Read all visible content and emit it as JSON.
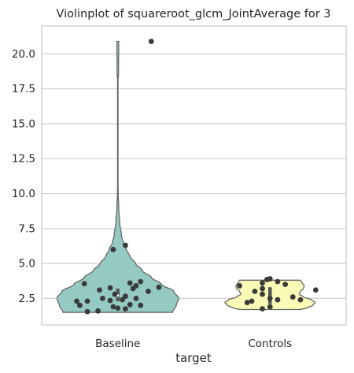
{
  "chart_data": {
    "type": "violin",
    "title": "Violinplot of squareroot_glcm_JointAverage for 3",
    "xlabel": "target",
    "ylabel": "",
    "ylim": [
      0.6,
      22.0
    ],
    "yticks": [
      2.5,
      5.0,
      7.5,
      10.0,
      12.5,
      15.0,
      17.5,
      20.0
    ],
    "ytick_labels": [
      "2.5",
      "5.0",
      "7.5",
      "10.0",
      "12.5",
      "15.0",
      "17.5",
      "20.0"
    ],
    "grid": true,
    "categories": [
      "Baseline",
      "Controls"
    ],
    "colors": {
      "Baseline": "#95cac2",
      "Controls": "#fafab7"
    },
    "violins": [
      {
        "category": "Baseline",
        "min": 1.5,
        "max": 20.9,
        "q1": 2.3,
        "median": 2.7,
        "q3": 3.2,
        "profile": [
          [
            1.5,
            0.9
          ],
          [
            2.0,
            0.96
          ],
          [
            2.5,
            1.0
          ],
          [
            3.0,
            0.92
          ],
          [
            3.5,
            0.72
          ],
          [
            4.0,
            0.55
          ],
          [
            4.5,
            0.4
          ],
          [
            5.0,
            0.29
          ],
          [
            5.5,
            0.2
          ],
          [
            6.0,
            0.14
          ],
          [
            6.5,
            0.09
          ],
          [
            7.0,
            0.06
          ],
          [
            8.0,
            0.03
          ],
          [
            9.0,
            0.015
          ],
          [
            10.0,
            0.006
          ],
          [
            11.0,
            0.002
          ],
          [
            14.0,
            0.0
          ],
          [
            18.0,
            0.0
          ],
          [
            18.6,
            0.012
          ],
          [
            19.3,
            0.012
          ],
          [
            20.2,
            0.015
          ],
          [
            20.9,
            0.015
          ]
        ],
        "points": [
          [
            1.55,
            -0.2
          ],
          [
            1.6,
            -0.13
          ],
          [
            1.75,
            0.05
          ],
          [
            1.8,
            0.0
          ],
          [
            1.9,
            -0.03
          ],
          [
            2.0,
            -0.25
          ],
          [
            2.05,
            0.08
          ],
          [
            2.0,
            0.15
          ],
          [
            2.3,
            -0.27
          ],
          [
            2.3,
            -0.2
          ],
          [
            2.35,
            -0.05
          ],
          [
            2.4,
            0.03
          ],
          [
            2.5,
            -0.1
          ],
          [
            2.5,
            0.12
          ],
          [
            2.65,
            0.05
          ],
          [
            2.8,
            -0.02
          ],
          [
            3.0,
            0.2
          ],
          [
            3.1,
            -0.12
          ],
          [
            3.2,
            0.1
          ],
          [
            3.25,
            -0.05
          ],
          [
            3.3,
            0.27
          ],
          [
            3.4,
            0.12
          ],
          [
            3.55,
            -0.22
          ],
          [
            3.6,
            0.08
          ],
          [
            3.7,
            0.15
          ],
          [
            6.0,
            -0.03
          ],
          [
            6.3,
            0.05
          ],
          [
            20.9,
            0.22
          ]
        ]
      },
      {
        "category": "Controls",
        "min": 1.7,
        "max": 3.8,
        "q1": 2.1,
        "median": 2.5,
        "q3": 3.3,
        "profile": [
          [
            1.7,
            0.5
          ],
          [
            1.8,
            0.6
          ],
          [
            2.0,
            0.7
          ],
          [
            2.2,
            0.74
          ],
          [
            2.4,
            0.68
          ],
          [
            2.6,
            0.55
          ],
          [
            2.8,
            0.48
          ],
          [
            3.0,
            0.5
          ],
          [
            3.2,
            0.55
          ],
          [
            3.4,
            0.56
          ],
          [
            3.6,
            0.53
          ],
          [
            3.8,
            0.5
          ]
        ],
        "points": [
          [
            1.75,
            -0.05
          ],
          [
            1.9,
            0.0
          ],
          [
            2.2,
            -0.15
          ],
          [
            2.3,
            -0.12
          ],
          [
            2.4,
            0.05
          ],
          [
            2.4,
            0.2
          ],
          [
            2.5,
            0.0
          ],
          [
            2.6,
            0.15
          ],
          [
            2.8,
            -0.05
          ],
          [
            3.0,
            -0.1
          ],
          [
            3.1,
            0.3
          ],
          [
            3.2,
            -0.05
          ],
          [
            3.4,
            -0.2
          ],
          [
            3.5,
            0.1
          ],
          [
            3.6,
            -0.05
          ],
          [
            3.7,
            0.05
          ],
          [
            3.85,
            -0.02
          ],
          [
            3.9,
            0.0
          ]
        ]
      }
    ]
  }
}
